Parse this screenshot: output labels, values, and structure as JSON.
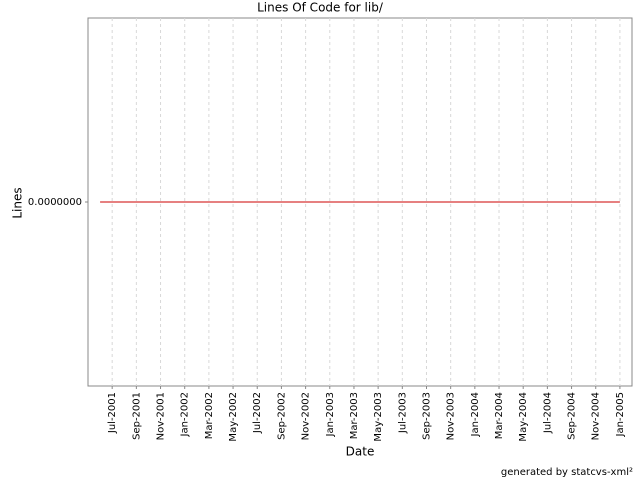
{
  "chart_data": {
    "type": "line",
    "title": "Lines Of Code for lib/",
    "x_label": "Date",
    "y_label": "Lines",
    "footer": "generated by statcvs-xml²",
    "x": [
      "2001-06",
      "2005-01"
    ],
    "values": [
      0,
      0
    ],
    "color": "#cc0000",
    "xlim": [
      "2001-05",
      "2005-02"
    ],
    "xticks": [
      {
        "value": "2001-07",
        "label": "Jul-2001"
      },
      {
        "value": "2001-09",
        "label": "Sep-2001"
      },
      {
        "value": "2001-11",
        "label": "Nov-2001"
      },
      {
        "value": "2002-01",
        "label": "Jan-2002"
      },
      {
        "value": "2002-03",
        "label": "Mar-2002"
      },
      {
        "value": "2002-05",
        "label": "May-2002"
      },
      {
        "value": "2002-07",
        "label": "Jul-2002"
      },
      {
        "value": "2002-09",
        "label": "Sep-2002"
      },
      {
        "value": "2002-11",
        "label": "Nov-2002"
      },
      {
        "value": "2003-01",
        "label": "Jan-2003"
      },
      {
        "value": "2003-03",
        "label": "Mar-2003"
      },
      {
        "value": "2003-05",
        "label": "May-2003"
      },
      {
        "value": "2003-07",
        "label": "Jul-2003"
      },
      {
        "value": "2003-09",
        "label": "Sep-2003"
      },
      {
        "value": "2003-11",
        "label": "Nov-2003"
      },
      {
        "value": "2004-01",
        "label": "Jan-2004"
      },
      {
        "value": "2004-03",
        "label": "Mar-2004"
      },
      {
        "value": "2004-05",
        "label": "May-2004"
      },
      {
        "value": "2004-07",
        "label": "Jul-2004"
      },
      {
        "value": "2004-09",
        "label": "Sep-2004"
      },
      {
        "value": "2004-11",
        "label": "Nov-2004"
      },
      {
        "value": "2005-01",
        "label": "Jan-2005"
      }
    ],
    "ylim": [
      -1,
      1
    ],
    "yticks": [
      {
        "value": 0,
        "label": "0.0000000"
      }
    ],
    "grid": true
  }
}
